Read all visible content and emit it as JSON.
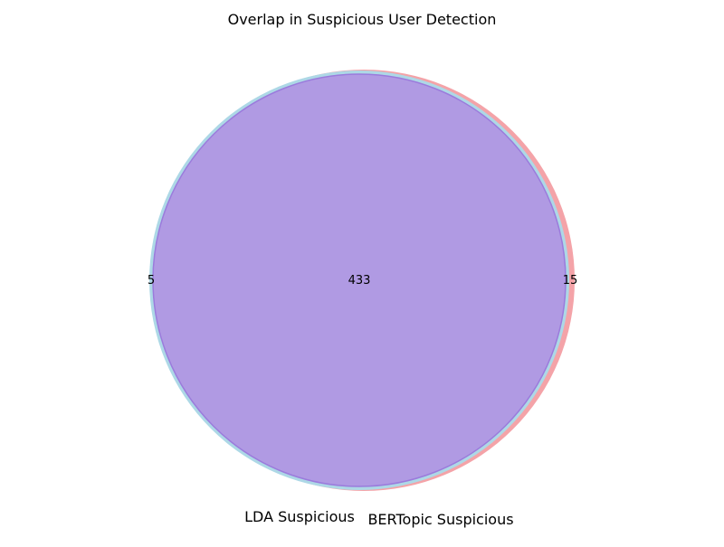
{
  "chart_data": {
    "type": "venn",
    "title": "Overlap in Suspicious User Detection",
    "sets": [
      {
        "name": "LDA Suspicious",
        "only_count": 5,
        "color": "#add8e6"
      },
      {
        "name": "BERTopic Suspicious",
        "only_count": 15,
        "color": "#f4a3a8"
      }
    ],
    "intersection": {
      "count": 433,
      "color": "#b09ae3"
    },
    "labels": {
      "left_only": "5",
      "overlap": "433",
      "right_only": "15"
    }
  }
}
